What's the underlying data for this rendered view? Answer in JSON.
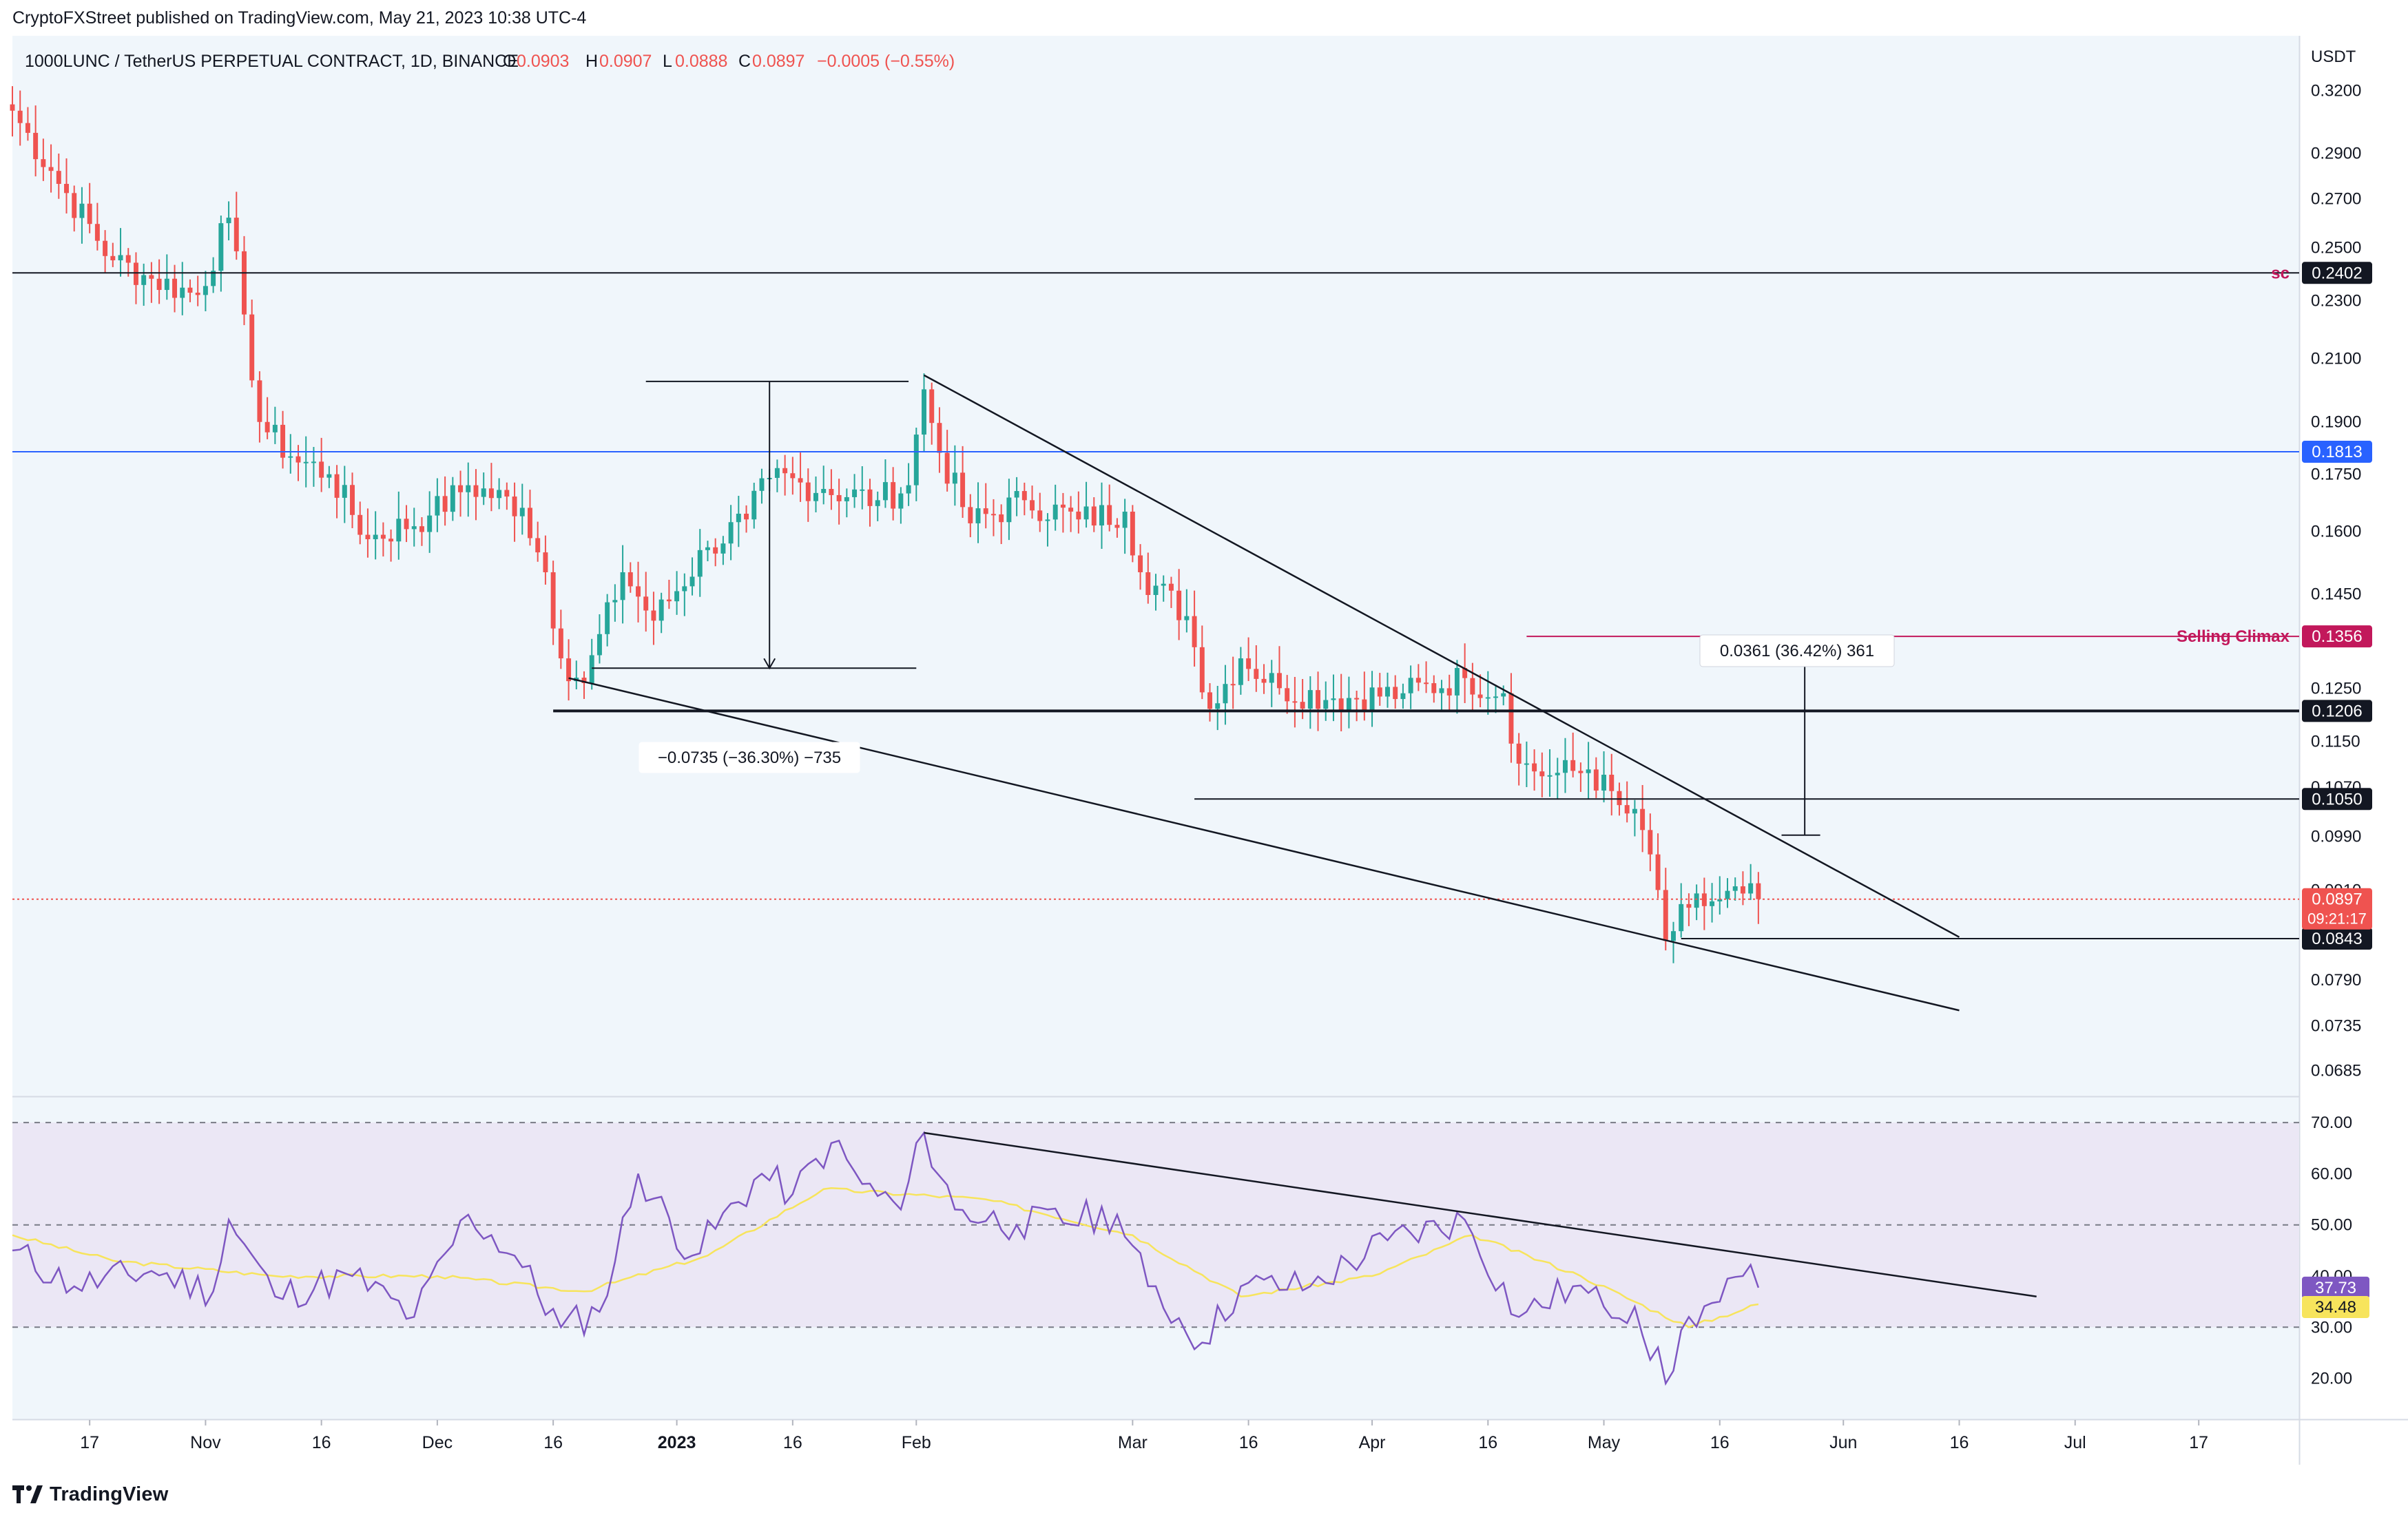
{
  "header": {
    "published_by": "CryptoFXStreet published on TradingView.com, May 21, 2023 10:38 UTC-4"
  },
  "legend": {
    "symbol": "1000LUNC / TetherUS PERPETUAL CONTRACT, 1D, BINANCE",
    "open_label": "O",
    "open": "0.0903",
    "high_label": "H",
    "high": "0.0907",
    "low_label": "L",
    "low": "0.0888",
    "close_label": "C",
    "close": "0.0897",
    "change": "−0.0005 (−0.55%)"
  },
  "footer": {
    "brand": "TradingView"
  },
  "colors": {
    "up": "#26a69a",
    "down": "#ef5350",
    "blue_line": "#2962ff",
    "selling_climax": "#c2185b",
    "rsi": "#7e57c2",
    "rsi_ma": "#f7e45c",
    "rsi_band": "#ebe7f5",
    "background": "#f0f6fb"
  },
  "chart_data": [
    {
      "type": "candlestick",
      "price_axis_unit": "USDT",
      "y_scale": "log",
      "y_range": [
        0.0665,
        0.345
      ],
      "y_ticks": [
        "0.3200",
        "0.2900",
        "0.2700",
        "0.2500",
        "0.2300",
        "0.2100",
        "0.1900",
        "0.1750",
        "0.1600",
        "0.1450",
        "0.1350",
        "0.1250",
        "0.1150",
        "0.1070",
        "0.0990",
        "0.0910",
        "0.0790",
        "0.0735",
        "0.0685"
      ],
      "x_ticks": [
        {
          "label": "17",
          "date": "2022-10-17"
        },
        {
          "label": "Nov",
          "date": "2022-11-01"
        },
        {
          "label": "16",
          "date": "2022-11-16"
        },
        {
          "label": "Dec",
          "date": "2022-12-01"
        },
        {
          "label": "16",
          "date": "2022-12-16"
        },
        {
          "label": "2023",
          "date": "2023-01-01",
          "bold": true
        },
        {
          "label": "16",
          "date": "2023-01-16"
        },
        {
          "label": "Feb",
          "date": "2023-02-01"
        },
        {
          "label": "Mar",
          "date": "2023-03-01"
        },
        {
          "label": "16",
          "date": "2023-03-16"
        },
        {
          "label": "Apr",
          "date": "2023-04-01"
        },
        {
          "label": "16",
          "date": "2023-04-16"
        },
        {
          "label": "May",
          "date": "2023-05-01"
        },
        {
          "label": "16",
          "date": "2023-05-16"
        },
        {
          "label": "Jun",
          "date": "2023-06-01"
        },
        {
          "label": "16",
          "date": "2023-06-16"
        },
        {
          "label": "Jul",
          "date": "2023-07-01"
        },
        {
          "label": "17",
          "date": "2023-07-17"
        }
      ],
      "x_range": [
        "2022-10-07",
        "2023-07-30"
      ],
      "anchors": [
        {
          "date": "2022-10-07",
          "close": 0.31
        },
        {
          "date": "2022-10-12",
          "close": 0.282
        },
        {
          "date": "2022-10-20",
          "close": 0.245
        },
        {
          "date": "2022-10-25",
          "close": 0.238
        },
        {
          "date": "2022-10-31",
          "close": 0.232
        },
        {
          "date": "2022-11-04",
          "close": 0.262
        },
        {
          "date": "2022-11-06",
          "close": 0.225
        },
        {
          "date": "2022-11-08",
          "close": 0.19
        },
        {
          "date": "2022-11-12",
          "close": 0.18
        },
        {
          "date": "2022-11-17",
          "close": 0.175
        },
        {
          "date": "2022-11-22",
          "close": 0.158
        },
        {
          "date": "2022-11-30",
          "close": 0.164
        },
        {
          "date": "2022-12-05",
          "close": 0.172
        },
        {
          "date": "2022-12-12",
          "close": 0.166
        },
        {
          "date": "2022-12-15",
          "close": 0.15
        },
        {
          "date": "2022-12-17",
          "close": 0.131
        },
        {
          "date": "2022-12-20",
          "close": 0.126
        },
        {
          "date": "2022-12-25",
          "close": 0.15
        },
        {
          "date": "2022-12-29",
          "close": 0.139
        },
        {
          "date": "2023-01-05",
          "close": 0.156
        },
        {
          "date": "2023-01-10",
          "close": 0.163
        },
        {
          "date": "2023-01-13",
          "close": 0.174
        },
        {
          "date": "2023-01-20",
          "close": 0.171
        },
        {
          "date": "2023-01-27",
          "close": 0.168
        },
        {
          "date": "2023-01-31",
          "close": 0.172
        },
        {
          "date": "2023-02-02",
          "close": 0.2
        },
        {
          "date": "2023-02-04",
          "close": 0.181
        },
        {
          "date": "2023-02-08",
          "close": 0.162
        },
        {
          "date": "2023-02-15",
          "close": 0.168
        },
        {
          "date": "2023-02-22",
          "close": 0.163
        },
        {
          "date": "2023-02-28",
          "close": 0.165
        },
        {
          "date": "2023-03-02",
          "close": 0.15
        },
        {
          "date": "2023-03-08",
          "close": 0.14
        },
        {
          "date": "2023-03-11",
          "close": 0.121
        },
        {
          "date": "2023-03-15",
          "close": 0.131
        },
        {
          "date": "2023-03-20",
          "close": 0.125
        },
        {
          "date": "2023-03-27",
          "close": 0.123
        },
        {
          "date": "2023-04-05",
          "close": 0.124
        },
        {
          "date": "2023-04-13",
          "close": 0.127
        },
        {
          "date": "2023-04-18",
          "close": 0.124
        },
        {
          "date": "2023-04-20",
          "close": 0.111
        },
        {
          "date": "2023-04-24",
          "close": 0.109
        },
        {
          "date": "2023-04-29",
          "close": 0.11
        },
        {
          "date": "2023-05-03",
          "close": 0.104
        },
        {
          "date": "2023-05-06",
          "close": 0.1
        },
        {
          "date": "2023-05-08",
          "close": 0.091
        },
        {
          "date": "2023-05-09",
          "close": 0.084
        },
        {
          "date": "2023-05-12",
          "close": 0.0885
        },
        {
          "date": "2023-05-16",
          "close": 0.0897
        },
        {
          "date": "2023-05-19",
          "close": 0.0905
        },
        {
          "date": "2023-05-21",
          "close": 0.0897
        }
      ],
      "levels": [
        {
          "price": 0.2402,
          "label": "0.2402",
          "side_label": "sc",
          "color": "#131722"
        },
        {
          "price": 0.1813,
          "label": "0.1813",
          "color": "#2962ff"
        },
        {
          "price": 0.1356,
          "label": "0.1356",
          "side_label": "Selling Climax",
          "color": "#c2185b",
          "from": "2023-04-21"
        },
        {
          "price": 0.1206,
          "label": "0.1206",
          "color": "#131722",
          "from": "2022-12-16",
          "bold": true
        },
        {
          "price": 0.105,
          "label": "0.1050",
          "color": "#131722",
          "from": "2023-03-09"
        },
        {
          "price": 0.0843,
          "label": "0.0843",
          "color": "#131722",
          "from": "2023-05-11"
        }
      ],
      "last_price": {
        "label": "0.0897",
        "countdown": "09:21:17"
      },
      "trendlines": [
        {
          "from": {
            "date": "2023-02-02",
            "price": 0.2045
          },
          "to": {
            "date": "2023-06-16",
            "price": 0.0845
          }
        },
        {
          "from": {
            "date": "2022-12-18",
            "price": 0.127
          },
          "to": {
            "date": "2023-06-16",
            "price": 0.0753
          }
        }
      ],
      "measurements": [
        {
          "text": "−0.0735 (−36.30%) −735",
          "from": {
            "date": "2023-01-13",
            "price": 0.2025
          },
          "to": {
            "date": "2023-01-13",
            "price": 0.129
          }
        },
        {
          "text": "0.0361 (36.42%) 361",
          "from": {
            "date": "2023-05-27",
            "price": 0.0992
          },
          "to": {
            "date": "2023-05-27",
            "price": 0.1353
          }
        }
      ]
    },
    {
      "type": "line",
      "indicator": "RSI",
      "y_range": [
        12,
        75
      ],
      "y_ticks": [
        "70.00",
        "60.00",
        "50.00",
        "40.00",
        "30.00",
        "20.00"
      ],
      "bands": {
        "upper": 70,
        "middle": 50,
        "lower": 30
      },
      "rsi_value": "37.73",
      "ma_value": "34.48",
      "anchors": [
        {
          "date": "2022-10-07",
          "rsi": 45
        },
        {
          "date": "2022-10-15",
          "rsi": 38
        },
        {
          "date": "2022-10-25",
          "rsi": 41
        },
        {
          "date": "2022-11-02",
          "rsi": 37
        },
        {
          "date": "2022-11-04",
          "rsi": 51
        },
        {
          "date": "2022-11-10",
          "rsi": 36
        },
        {
          "date": "2022-11-20",
          "rsi": 40
        },
        {
          "date": "2022-11-28",
          "rsi": 32
        },
        {
          "date": "2022-12-05",
          "rsi": 52
        },
        {
          "date": "2022-12-11",
          "rsi": 44
        },
        {
          "date": "2022-12-17",
          "rsi": 30
        },
        {
          "date": "2022-12-22",
          "rsi": 33
        },
        {
          "date": "2022-12-27",
          "rsi": 60
        },
        {
          "date": "2023-01-03",
          "rsi": 44
        },
        {
          "date": "2023-01-12",
          "rsi": 60
        },
        {
          "date": "2023-01-16",
          "rsi": 56
        },
        {
          "date": "2023-01-21",
          "rsi": 66
        },
        {
          "date": "2023-01-25",
          "rsi": 58
        },
        {
          "date": "2023-01-30",
          "rsi": 53
        },
        {
          "date": "2023-02-02",
          "rsi": 68
        },
        {
          "date": "2023-02-06",
          "rsi": 53
        },
        {
          "date": "2023-02-14",
          "rsi": 50
        },
        {
          "date": "2023-02-27",
          "rsi": 52
        },
        {
          "date": "2023-03-03",
          "rsi": 38
        },
        {
          "date": "2023-03-10",
          "rsi": 27
        },
        {
          "date": "2023-03-15",
          "rsi": 38
        },
        {
          "date": "2023-03-24",
          "rsi": 38
        },
        {
          "date": "2023-04-03",
          "rsi": 47
        },
        {
          "date": "2023-04-13",
          "rsi": 51
        },
        {
          "date": "2023-04-20",
          "rsi": 32
        },
        {
          "date": "2023-04-27",
          "rsi": 38
        },
        {
          "date": "2023-05-01",
          "rsi": 34
        },
        {
          "date": "2023-05-05",
          "rsi": 34
        },
        {
          "date": "2023-05-09",
          "rsi": 19
        },
        {
          "date": "2023-05-12",
          "rsi": 32
        },
        {
          "date": "2023-05-16",
          "rsi": 35
        },
        {
          "date": "2023-05-19",
          "rsi": 40
        },
        {
          "date": "2023-05-21",
          "rsi": 37.73
        }
      ],
      "ma_anchors": [
        {
          "date": "2022-10-07",
          "ma": 48
        },
        {
          "date": "2022-10-20",
          "ma": 43
        },
        {
          "date": "2022-11-10",
          "ma": 40
        },
        {
          "date": "2022-12-01",
          "ma": 40
        },
        {
          "date": "2022-12-20",
          "ma": 37
        },
        {
          "date": "2023-01-05",
          "ma": 44
        },
        {
          "date": "2023-01-20",
          "ma": 57
        },
        {
          "date": "2023-02-10",
          "ma": 55
        },
        {
          "date": "2023-03-01",
          "ma": 48
        },
        {
          "date": "2023-03-15",
          "ma": 36
        },
        {
          "date": "2023-04-01",
          "ma": 40
        },
        {
          "date": "2023-04-14",
          "ma": 48
        },
        {
          "date": "2023-04-28",
          "ma": 40
        },
        {
          "date": "2023-05-12",
          "ma": 30
        },
        {
          "date": "2023-05-21",
          "ma": 34.48
        }
      ],
      "trendline": {
        "from": {
          "date": "2023-02-02",
          "rsi": 68
        },
        "to": {
          "date": "2023-06-26",
          "rsi": 36
        }
      }
    }
  ]
}
